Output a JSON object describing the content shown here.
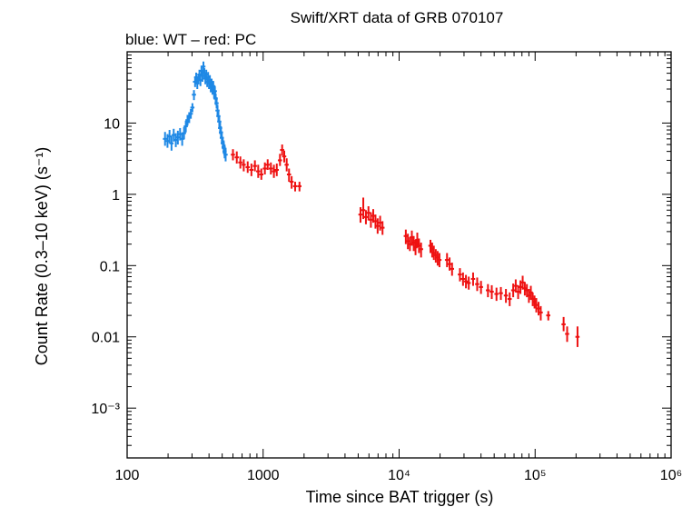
{
  "chart_data": {
    "type": "scatter",
    "title": "Swift/XRT data of GRB 070107",
    "subtitle": "blue: WT – red: PC",
    "xlabel": "Time since BAT trigger (s)",
    "ylabel": "Count Rate (0.3–10 keV) (s⁻¹)",
    "xscale": "log",
    "yscale": "log",
    "xlim": [
      100,
      1000000
    ],
    "ylim": [
      0.0002,
      100
    ],
    "x_ticks": [
      {
        "value": 100,
        "label": "100"
      },
      {
        "value": 1000,
        "label": "1000"
      },
      {
        "value": 10000,
        "label": "10⁴"
      },
      {
        "value": 100000,
        "label": "10⁵"
      },
      {
        "value": 1000000,
        "label": "10⁶"
      }
    ],
    "y_ticks": [
      {
        "value": 10,
        "label": "10"
      },
      {
        "value": 1,
        "label": "1"
      },
      {
        "value": 0.1,
        "label": "0.1"
      },
      {
        "value": 0.01,
        "label": "0.01"
      },
      {
        "value": 0.001,
        "label": "10⁻³"
      }
    ],
    "series": [
      {
        "name": "WT",
        "color": "#1e88e5",
        "points": [
          [
            190,
            6.0,
            7.5,
            4.8
          ],
          [
            198,
            5.6,
            7.0,
            4.5
          ],
          [
            205,
            6.5,
            8.0,
            5.2
          ],
          [
            212,
            5.2,
            6.6,
            4.1
          ],
          [
            220,
            6.8,
            8.3,
            5.5
          ],
          [
            228,
            5.8,
            7.2,
            4.6
          ],
          [
            236,
            6.3,
            7.8,
            5.0
          ],
          [
            245,
            7.0,
            8.5,
            5.7
          ],
          [
            254,
            6.0,
            7.4,
            4.8
          ],
          [
            262,
            7.2,
            8.8,
            5.9
          ],
          [
            270,
            9.0,
            10.8,
            7.4
          ],
          [
            278,
            11.0,
            13.0,
            9.2
          ],
          [
            286,
            12.0,
            14.2,
            10.0
          ],
          [
            294,
            13.5,
            15.8,
            11.5
          ],
          [
            302,
            16.5,
            19.0,
            14.2
          ],
          [
            310,
            25,
            29,
            21
          ],
          [
            316,
            38,
            44,
            32
          ],
          [
            322,
            44,
            51,
            37
          ],
          [
            328,
            36,
            42,
            30
          ],
          [
            334,
            42,
            49,
            35
          ],
          [
            340,
            48,
            56,
            40
          ],
          [
            346,
            40,
            47,
            33
          ],
          [
            352,
            54,
            64,
            45
          ],
          [
            358,
            46,
            54,
            38
          ],
          [
            364,
            62,
            73,
            51
          ],
          [
            370,
            50,
            59,
            42
          ],
          [
            376,
            42,
            49,
            35
          ],
          [
            382,
            48,
            56,
            40
          ],
          [
            388,
            38,
            45,
            32
          ],
          [
            394,
            44,
            52,
            37
          ],
          [
            400,
            36,
            42,
            30
          ],
          [
            406,
            40,
            47,
            33
          ],
          [
            412,
            32,
            38,
            27
          ],
          [
            418,
            36,
            42,
            30
          ],
          [
            424,
            30,
            35,
            25
          ],
          [
            430,
            33,
            39,
            28
          ],
          [
            436,
            27,
            32,
            22
          ],
          [
            442,
            28,
            33,
            23
          ],
          [
            448,
            22,
            26,
            18
          ],
          [
            455,
            19,
            23,
            16
          ],
          [
            462,
            15,
            18,
            12.5
          ],
          [
            469,
            12.5,
            15,
            10.4
          ],
          [
            476,
            10.5,
            12.6,
            8.7
          ],
          [
            483,
            8.5,
            10.3,
            7.0
          ],
          [
            490,
            7.4,
            9.0,
            6.1
          ],
          [
            497,
            6.2,
            7.6,
            5.1
          ],
          [
            505,
            5.2,
            6.4,
            4.3
          ],
          [
            513,
            4.6,
            5.7,
            3.7
          ],
          [
            521,
            4.0,
            5.0,
            3.2
          ],
          [
            530,
            3.6,
            4.5,
            2.9
          ]
        ]
      },
      {
        "name": "PC",
        "color": "#ee1111",
        "points": [
          [
            600,
            3.6,
            4.3,
            3.0
          ],
          [
            640,
            3.3,
            4.0,
            2.7
          ],
          [
            680,
            2.8,
            3.4,
            2.3
          ],
          [
            720,
            2.6,
            3.1,
            2.1
          ],
          [
            770,
            2.4,
            2.9,
            2.0
          ],
          [
            820,
            2.2,
            2.7,
            1.8
          ],
          [
            870,
            2.5,
            3.0,
            2.1
          ],
          [
            920,
            2.1,
            2.6,
            1.7
          ],
          [
            970,
            1.9,
            2.3,
            1.6
          ],
          [
            1030,
            2.3,
            2.8,
            1.9
          ],
          [
            1080,
            2.6,
            3.1,
            2.2
          ],
          [
            1140,
            2.3,
            2.8,
            1.9
          ],
          [
            1200,
            2.1,
            2.6,
            1.7
          ],
          [
            1260,
            2.2,
            2.7,
            1.8
          ],
          [
            1330,
            3.0,
            3.7,
            2.5
          ],
          [
            1380,
            4.2,
            5.0,
            3.5
          ],
          [
            1430,
            3.4,
            4.1,
            2.8
          ],
          [
            1490,
            2.6,
            3.2,
            2.1
          ],
          [
            1550,
            1.9,
            2.3,
            1.5
          ],
          [
            1620,
            1.5,
            1.8,
            1.2
          ],
          [
            1720,
            1.3,
            1.5,
            1.1
          ],
          [
            1850,
            1.3,
            1.5,
            1.1
          ],
          [
            5200,
            0.52,
            0.66,
            0.4
          ],
          [
            5450,
            0.6,
            0.9,
            0.45
          ],
          [
            5700,
            0.48,
            0.6,
            0.38
          ],
          [
            5950,
            0.55,
            0.68,
            0.43
          ],
          [
            6200,
            0.44,
            0.56,
            0.34
          ],
          [
            6450,
            0.5,
            0.62,
            0.4
          ],
          [
            6700,
            0.42,
            0.52,
            0.33
          ],
          [
            6950,
            0.36,
            0.46,
            0.28
          ],
          [
            7250,
            0.4,
            0.5,
            0.31
          ],
          [
            7550,
            0.34,
            0.42,
            0.27
          ],
          [
            11200,
            0.26,
            0.32,
            0.2
          ],
          [
            11600,
            0.22,
            0.28,
            0.17
          ],
          [
            12000,
            0.2,
            0.25,
            0.16
          ],
          [
            12400,
            0.25,
            0.31,
            0.19
          ],
          [
            12800,
            0.21,
            0.26,
            0.16
          ],
          [
            13200,
            0.18,
            0.23,
            0.14
          ],
          [
            13600,
            0.23,
            0.29,
            0.18
          ],
          [
            14000,
            0.19,
            0.24,
            0.15
          ],
          [
            14500,
            0.17,
            0.21,
            0.13
          ],
          [
            17000,
            0.19,
            0.23,
            0.15
          ],
          [
            17500,
            0.17,
            0.21,
            0.13
          ],
          [
            18000,
            0.15,
            0.19,
            0.12
          ],
          [
            18600,
            0.14,
            0.17,
            0.11
          ],
          [
            19200,
            0.13,
            0.16,
            0.1
          ],
          [
            19800,
            0.12,
            0.15,
            0.095
          ],
          [
            22500,
            0.12,
            0.15,
            0.095
          ],
          [
            23500,
            0.105,
            0.13,
            0.085
          ],
          [
            24500,
            0.09,
            0.11,
            0.072
          ],
          [
            28000,
            0.075,
            0.092,
            0.06
          ],
          [
            29500,
            0.065,
            0.08,
            0.052
          ],
          [
            31000,
            0.06,
            0.074,
            0.048
          ],
          [
            32500,
            0.057,
            0.07,
            0.046
          ],
          [
            35000,
            0.065,
            0.08,
            0.052
          ],
          [
            37500,
            0.055,
            0.068,
            0.044
          ],
          [
            40000,
            0.05,
            0.061,
            0.04
          ],
          [
            45000,
            0.045,
            0.055,
            0.036
          ],
          [
            48000,
            0.043,
            0.053,
            0.034
          ],
          [
            52000,
            0.04,
            0.049,
            0.032
          ],
          [
            56000,
            0.041,
            0.05,
            0.033
          ],
          [
            61000,
            0.038,
            0.047,
            0.03
          ],
          [
            65000,
            0.034,
            0.042,
            0.027
          ],
          [
            69000,
            0.045,
            0.056,
            0.036
          ],
          [
            72000,
            0.052,
            0.064,
            0.042
          ],
          [
            75000,
            0.043,
            0.053,
            0.034
          ],
          [
            78000,
            0.05,
            0.062,
            0.04
          ],
          [
            81000,
            0.058,
            0.072,
            0.046
          ],
          [
            84000,
            0.048,
            0.059,
            0.038
          ],
          [
            87000,
            0.045,
            0.055,
            0.036
          ],
          [
            90000,
            0.038,
            0.047,
            0.03
          ],
          [
            93000,
            0.042,
            0.052,
            0.033
          ],
          [
            96000,
            0.034,
            0.042,
            0.027
          ],
          [
            99000,
            0.031,
            0.038,
            0.025
          ],
          [
            102000,
            0.028,
            0.035,
            0.022
          ],
          [
            106000,
            0.025,
            0.031,
            0.02
          ],
          [
            110000,
            0.022,
            0.027,
            0.017
          ],
          [
            125000,
            0.02,
            0.023,
            0.017
          ],
          [
            162000,
            0.015,
            0.019,
            0.012
          ],
          [
            172000,
            0.011,
            0.014,
            0.0085
          ],
          [
            205000,
            0.01,
            0.014,
            0.0072
          ]
        ]
      }
    ]
  }
}
